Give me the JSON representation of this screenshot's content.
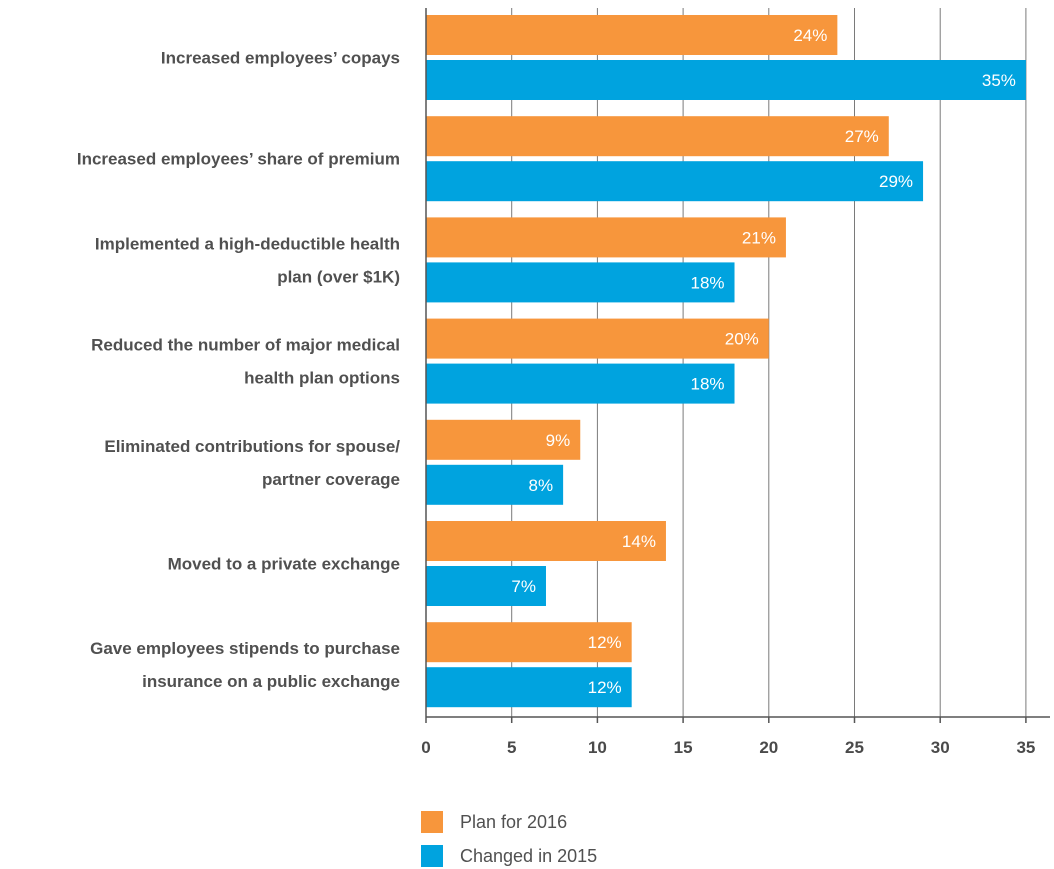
{
  "chart_data": {
    "type": "bar",
    "orientation": "horizontal",
    "categories": [
      [
        "Increased employees’ copays"
      ],
      [
        "Increased employees’ share of premium"
      ],
      [
        "Implemented a high-deductible health",
        "plan (over $1K)"
      ],
      [
        "Reduced the number of major medical",
        "health plan options"
      ],
      [
        "Eliminated contributions for spouse/",
        "partner coverage"
      ],
      [
        "Moved to a private exchange"
      ],
      [
        "Gave employees stipends to purchase",
        "insurance on a public exchange"
      ]
    ],
    "series": [
      {
        "name": "Plan for 2016",
        "color": "#F7963C",
        "values": [
          24,
          27,
          21,
          20,
          9,
          14,
          12
        ],
        "labels": [
          "24%",
          "27%",
          "21%",
          "20%",
          "9%",
          "14%",
          "12%"
        ]
      },
      {
        "name": "Changed in  2015",
        "color": "#00A3DF",
        "values": [
          35,
          29,
          18,
          18,
          8,
          7,
          12
        ],
        "labels": [
          "35%",
          "29%",
          "18%",
          "18%",
          "8%",
          "7%",
          "12%"
        ]
      }
    ],
    "xlim": [
      0,
      35
    ],
    "xticks": [
      "0",
      "5",
      "10",
      "15",
      "20",
      "25",
      "30",
      "35"
    ],
    "grid": true,
    "legend": "bottom-center"
  }
}
